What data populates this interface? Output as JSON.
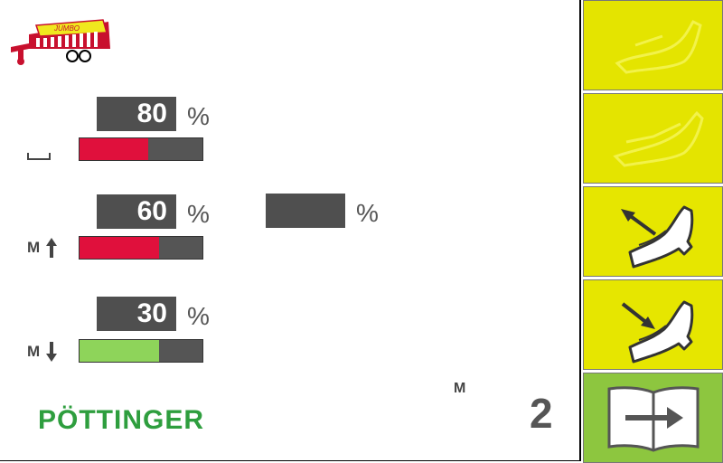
{
  "header": {
    "logo": {
      "icon": "loader-wagon-icon",
      "brand_label": "JUMBO",
      "colors": {
        "body": "#c8102e",
        "accent": "#f0e81e"
      }
    }
  },
  "rows": [
    {
      "id": "row1",
      "value": "80",
      "unit": "%",
      "indicator_icon": "baseline-bracket-icon",
      "indicator_label": "",
      "bar_fraction": 0.56,
      "bar_color": "#e0103c"
    },
    {
      "id": "row2",
      "value": "60",
      "unit": "%",
      "indicator_icon": "arrow-up-icon",
      "indicator_label": "M",
      "bar_fraction": 0.65,
      "bar_color": "#e0103c"
    },
    {
      "id": "row3",
      "value": "30",
      "unit": "%",
      "indicator_icon": "arrow-down-icon",
      "indicator_label": "M",
      "bar_fraction": 0.65,
      "bar_color": "#8ed45a"
    }
  ],
  "extra_field": {
    "value": "",
    "unit": "%"
  },
  "footer": {
    "brand": "PÖTTINGER",
    "mode_label": "M",
    "mode_number": "2"
  },
  "side_buttons": [
    {
      "id": "btn1",
      "icon": "pickup-raise-icon",
      "state": "disabled"
    },
    {
      "id": "btn2",
      "icon": "pickup-lower-icon",
      "state": "disabled"
    },
    {
      "id": "btn3",
      "icon": "pickup-lift-arrow-up-icon",
      "state": "active"
    },
    {
      "id": "btn4",
      "icon": "pickup-lower-arrow-down-icon",
      "state": "active"
    },
    {
      "id": "btn5",
      "icon": "book-next-page-icon",
      "state": "active"
    }
  ],
  "colors": {
    "brand_green": "#2e9e3e",
    "button_yellow": "#e6e600",
    "button_green": "#8dc63f",
    "value_box": "#4f4f4f"
  }
}
